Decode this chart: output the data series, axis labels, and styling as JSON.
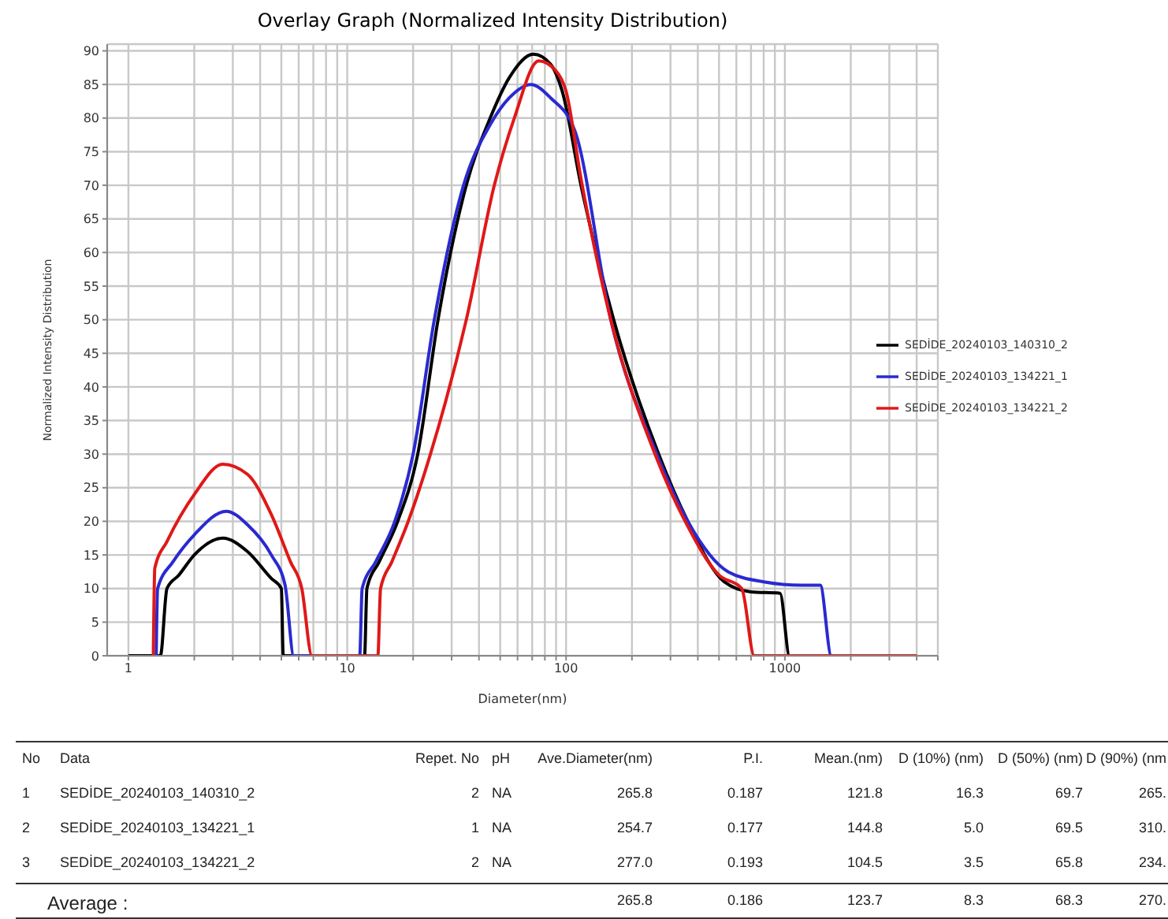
{
  "chart_data": {
    "type": "line",
    "title": "Overlay Graph (Normalized Intensity Distribution)",
    "xlabel": "Diameter(nm)",
    "ylabel": "Normalized Intensity Distribution",
    "log": "x",
    "grid": true,
    "legend": "right",
    "line_style": "solid",
    "xlim": [
      0.8,
      5000
    ],
    "ylim": [
      0,
      91
    ],
    "xticks": [
      1,
      {
        "value": 2,
        "label": null
      },
      {
        "value": 3,
        "label": null
      },
      {
        "value": 4,
        "label": null
      },
      {
        "value": 5,
        "label": null
      },
      {
        "value": 6,
        "label": null
      },
      {
        "value": 7,
        "label": null
      },
      {
        "value": 8,
        "label": null
      },
      {
        "value": 9,
        "label": null
      },
      10,
      {
        "value": 20,
        "label": null
      },
      {
        "value": 30,
        "label": null
      },
      {
        "value": 40,
        "label": null
      },
      {
        "value": 50,
        "label": null
      },
      {
        "value": 60,
        "label": null
      },
      {
        "value": 70,
        "label": null
      },
      {
        "value": 80,
        "label": null
      },
      {
        "value": 90,
        "label": null
      },
      100,
      {
        "value": 200,
        "label": null
      },
      {
        "value": 300,
        "label": null
      },
      {
        "value": 400,
        "label": null
      },
      {
        "value": 500,
        "label": null
      },
      {
        "value": 600,
        "label": null
      },
      {
        "value": 700,
        "label": null
      },
      {
        "value": 800,
        "label": null
      },
      {
        "value": 900,
        "label": null
      },
      1000,
      {
        "value": 2000,
        "label": null
      },
      {
        "value": 3000,
        "label": null
      },
      {
        "value": 4000,
        "label": null
      },
      {
        "value": 5000,
        "label": null
      }
    ],
    "yticks": [
      0,
      5,
      10,
      15,
      20,
      25,
      30,
      35,
      40,
      45,
      50,
      55,
      60,
      65,
      70,
      75,
      80,
      85,
      90
    ],
    "series": [
      {
        "name": "SEDİDE_20240103_140310_2",
        "color": "#000000",
        "x": [
          1,
          1.4,
          1.5,
          1.7,
          2,
          2.7,
          3.5,
          4.5,
          5,
          5.1,
          12,
          12.3,
          14,
          17,
          21,
          26,
          35,
          45,
          55,
          71,
          85,
          96,
          117,
          165,
          265,
          360,
          528,
          700,
          950,
          1050,
          4000
        ],
        "values": [
          0,
          0,
          10,
          12,
          15,
          17.5,
          15.5,
          11.5,
          10,
          0,
          0,
          10,
          14,
          20,
          30,
          50,
          70,
          80,
          86,
          89.5,
          88,
          84,
          70,
          50,
          30,
          20,
          11,
          9.5,
          9.3,
          0,
          0
        ]
      },
      {
        "name": "SEDİDE_20240103_134221_1",
        "color": "#2a2ad0",
        "x": [
          1.34,
          1.36,
          1.6,
          2,
          2.8,
          3.5,
          4.5,
          5.2,
          5.7,
          11.4,
          11.7,
          13.5,
          16.5,
          20,
          25,
          34,
          45,
          55,
          69,
          85,
          110,
          160,
          260,
          360,
          550,
          800,
          1200,
          1450,
          1630,
          4000
        ],
        "values": [
          0,
          10,
          14,
          18,
          21.5,
          19.5,
          15,
          10.5,
          0,
          0,
          10,
          14,
          20,
          30,
          50,
          70,
          79,
          83,
          85,
          83,
          78,
          50,
          30,
          20,
          12.5,
          11,
          10.5,
          10.5,
          0,
          0
        ]
      },
      {
        "name": "SEDİDE_20240103_134221_2",
        "color": "#e01818",
        "x": [
          1.3,
          1.32,
          1.5,
          2,
          2.7,
          3.5,
          4.5,
          5.5,
          6.2,
          6.9,
          13.8,
          14.2,
          16,
          19,
          24,
          35,
          47,
          58,
          75,
          90,
          100,
          117,
          160,
          255,
          350,
          500,
          635,
          725,
          4000
        ],
        "values": [
          0,
          13,
          17,
          24,
          28.5,
          27,
          21,
          14,
          10,
          0,
          0,
          10,
          14,
          20,
          30,
          50,
          70,
          80,
          88.5,
          87,
          84,
          71,
          50,
          30,
          20,
          12,
          10,
          0,
          0
        ]
      }
    ],
    "annotations": [
      "No",
      "Data",
      "Repet. No",
      "pH",
      "Ave.Diameter(nm)",
      "P.I.",
      "Mean.(nm)",
      "D (10%) (nm)",
      "D (50%) (nm)",
      "D (90%) (nm",
      "1",
      "SEDİDE_20240103_140310_2",
      "2",
      "NA",
      "265.8",
      "0.187",
      "121.8",
      "16.3",
      "69.7",
      "265.",
      "2",
      "SEDİDE_20240103_134221_1",
      "1",
      "NA",
      "254.7",
      "0.177",
      "144.8",
      "5.0",
      "69.5",
      "310.",
      "3",
      "SEDİDE_20240103_134221_2",
      "2",
      "NA",
      "277.0",
      "0.193",
      "104.5",
      "3.5",
      "65.8",
      "234.",
      "Average :",
      "265.8",
      "0.186",
      "123.7",
      "8.3",
      "68.3",
      "270."
    ]
  }
}
